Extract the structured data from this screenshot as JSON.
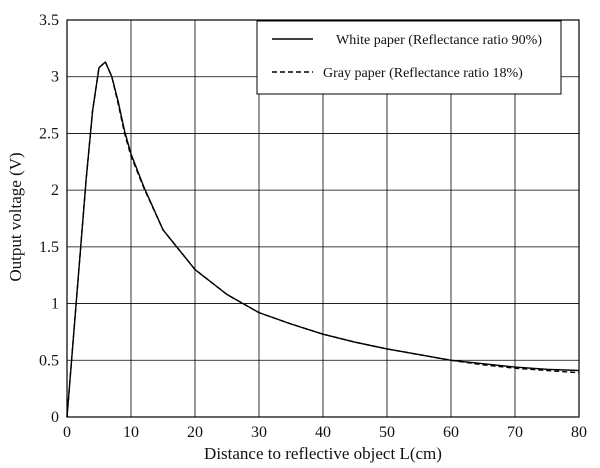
{
  "chart_data": {
    "type": "line",
    "title": "",
    "xlabel": "Distance to reflective object L(cm)",
    "ylabel": "Output voltage (V)",
    "xlim": [
      0,
      80
    ],
    "ylim": [
      0,
      3.5
    ],
    "xticks": [
      0,
      10,
      20,
      30,
      40,
      50,
      60,
      70,
      80
    ],
    "yticks": [
      0,
      0.5,
      1,
      1.5,
      2,
      2.5,
      3,
      3.5
    ],
    "xtick_labels": [
      "0",
      "10",
      "20",
      "30",
      "40",
      "50",
      "60",
      "70",
      "80"
    ],
    "ytick_labels": [
      "0",
      "0.5",
      "1",
      "1.5",
      "2",
      "2.5",
      "3",
      "3.5"
    ],
    "grid": true,
    "legend_position": "top-right",
    "series": [
      {
        "name": "White paper (Reflectance ratio 90%)",
        "style": "solid",
        "color": "#000000",
        "x": [
          0,
          2,
          3,
          4,
          5,
          6,
          7,
          8,
          9,
          10,
          12,
          15,
          20,
          25,
          30,
          35,
          40,
          45,
          50,
          55,
          60,
          65,
          70,
          75,
          80
        ],
        "y": [
          0,
          1.4,
          2.1,
          2.7,
          3.08,
          3.13,
          3.0,
          2.78,
          2.52,
          2.32,
          2.03,
          1.65,
          1.3,
          1.08,
          0.92,
          0.82,
          0.73,
          0.66,
          0.6,
          0.55,
          0.5,
          0.47,
          0.44,
          0.42,
          0.41
        ]
      },
      {
        "name": "Gray paper (Reflectance ratio 18%)",
        "style": "dashed",
        "color": "#000000",
        "x": [
          0,
          2,
          3,
          4,
          5,
          6,
          7,
          8,
          9,
          10,
          12,
          15,
          20,
          25,
          30,
          35,
          40,
          45,
          50,
          55,
          60,
          65,
          70,
          75,
          80
        ],
        "y": [
          0,
          1.4,
          2.1,
          2.7,
          3.08,
          3.13,
          3.0,
          2.76,
          2.5,
          2.3,
          2.02,
          1.65,
          1.3,
          1.08,
          0.92,
          0.82,
          0.73,
          0.66,
          0.6,
          0.55,
          0.5,
          0.46,
          0.43,
          0.41,
          0.39
        ]
      }
    ]
  }
}
